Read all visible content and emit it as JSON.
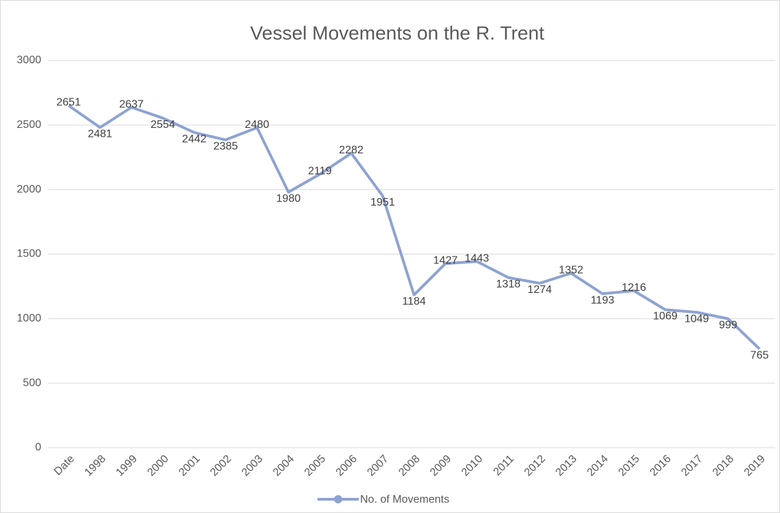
{
  "chart_data": {
    "type": "line",
    "title": "Vessel Movements on the R. Trent",
    "categories": [
      "Date",
      "1998",
      "1999",
      "2000",
      "2001",
      "2002",
      "2003",
      "2004",
      "2005",
      "2006",
      "2007",
      "2008",
      "2009",
      "2010",
      "2011",
      "2012",
      "2013",
      "2014",
      "2015",
      "2016",
      "2017",
      "2018",
      "2019"
    ],
    "series": [
      {
        "name": "No. of Movements",
        "color": "#8ea3d2",
        "values": [
          2651,
          2481,
          2637,
          2554,
          2442,
          2385,
          2480,
          1980,
          2119,
          2282,
          1951,
          1184,
          1427,
          1443,
          1318,
          1274,
          1352,
          1193,
          1216,
          1069,
          1049,
          999,
          765
        ]
      }
    ],
    "ylim": [
      0,
      3000
    ],
    "yticks": [
      0,
      500,
      1000,
      1500,
      2000,
      2500,
      3000
    ],
    "grid": true,
    "legend": "bottom"
  }
}
